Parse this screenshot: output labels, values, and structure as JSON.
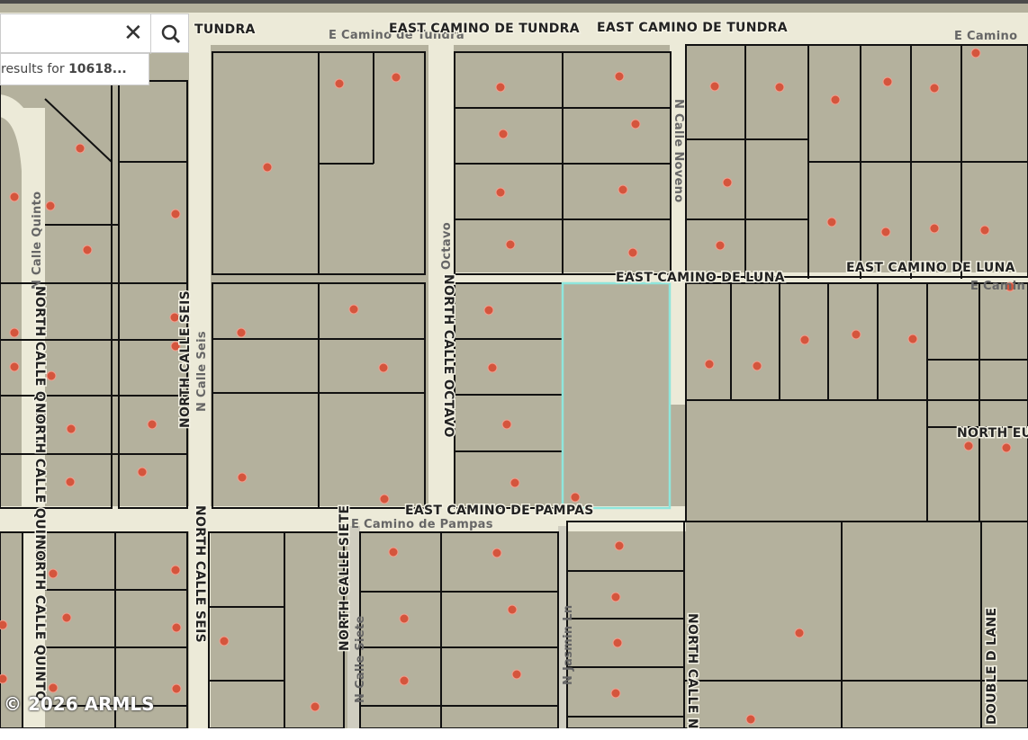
{
  "search": {
    "results_prefix": "results for",
    "query": "10618..."
  },
  "roads": [
    {
      "label": "TUNDRA"
    },
    {
      "label": "E Camino de Tundra"
    },
    {
      "label": "EAST CAMINO DE TUNDRA"
    },
    {
      "label": "EAST CAMINO DE TUNDRA"
    },
    {
      "label": "E Camino"
    },
    {
      "label": "EAST CAMINO DE LUNA"
    },
    {
      "label": "EAST CAMINO DE LUNA"
    },
    {
      "label": "E Camin"
    },
    {
      "label": "NORTH CALLE OCTAVO"
    },
    {
      "label": "Octavo"
    },
    {
      "label": "N Calle Noveno"
    },
    {
      "label": "N Calle Quinto"
    },
    {
      "label": "NORTH CALLE QUINTO"
    },
    {
      "label": "NORTH CALLE QUINTO"
    },
    {
      "label": "NORTH CALLE QUINTO"
    },
    {
      "label": "NORTH CALLE SEIS"
    },
    {
      "label": "N Calle Seis"
    },
    {
      "label": "NORTH CALLE SEIS"
    },
    {
      "label": "EAST CAMINO DE PAMPAS"
    },
    {
      "label": "E Camino de Pampas"
    },
    {
      "label": "NORTH CALLE SIETE"
    },
    {
      "label": "N Calle Siete"
    },
    {
      "label": "N Jasmin Ln"
    },
    {
      "label": "NORTH CALLE N"
    },
    {
      "label": "DOUBLE D LANE"
    },
    {
      "label": "NORTH EU"
    }
  ],
  "copyright": "© 2026 ARMLS"
}
